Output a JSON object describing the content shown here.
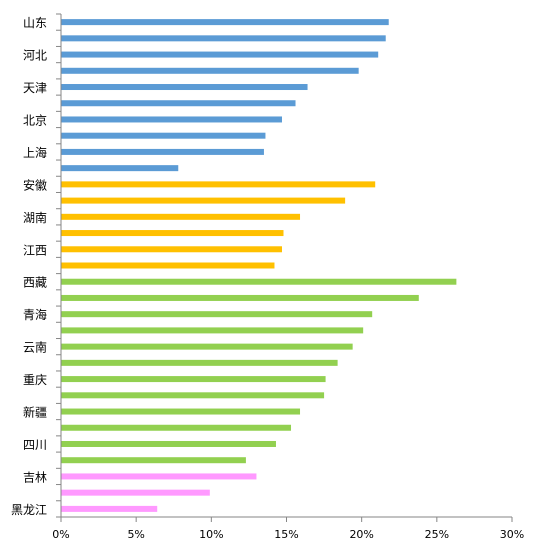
{
  "chart_data": {
    "type": "bar",
    "orientation": "horizontal",
    "grid": false,
    "legend": "none",
    "xlim": [
      0,
      30
    ],
    "x_tick_labels": [
      "0%",
      "5%",
      "10%",
      "15%",
      "20%",
      "25%",
      "30%"
    ],
    "categories": [
      "山东",
      "",
      "河北",
      "",
      "天津",
      "",
      "北京",
      "",
      "上海",
      "",
      "安徽",
      "",
      "湖南",
      "",
      "江西",
      "",
      "西藏",
      "",
      "青海",
      "",
      "云南",
      "",
      "重庆",
      "",
      "新疆",
      "",
      "四川",
      "",
      "吉林",
      "",
      "黑龙江"
    ],
    "values": [
      21.8,
      21.6,
      21.1,
      19.8,
      16.4,
      15.6,
      14.7,
      13.6,
      13.5,
      7.8,
      20.9,
      18.9,
      15.9,
      14.8,
      14.7,
      14.2,
      26.3,
      23.8,
      20.7,
      20.1,
      19.4,
      18.4,
      17.6,
      17.5,
      15.9,
      15.3,
      14.3,
      12.3,
      13.0,
      9.9,
      6.4
    ],
    "group_of_bar": [
      0,
      0,
      0,
      0,
      0,
      0,
      0,
      0,
      0,
      0,
      1,
      1,
      1,
      1,
      1,
      1,
      2,
      2,
      2,
      2,
      2,
      2,
      2,
      2,
      2,
      2,
      2,
      2,
      3,
      3,
      3
    ],
    "group_colors": [
      "#5b9bd5",
      "#ffc000",
      "#92d050",
      "#ff99ff"
    ],
    "axis_color": "#868686"
  }
}
